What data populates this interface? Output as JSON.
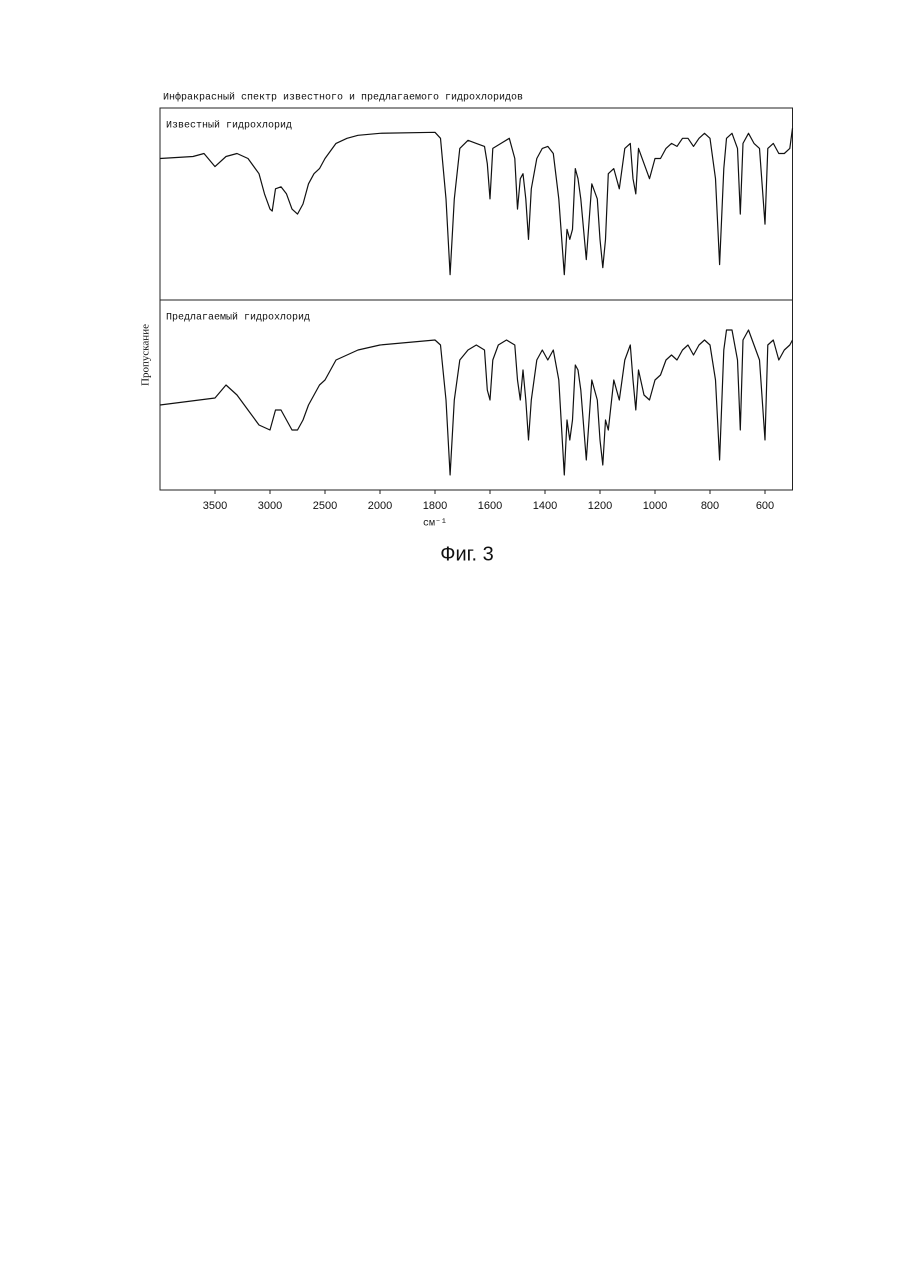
{
  "figure": {
    "title": "Инфракрасный спектр известного и предлагаемого гидрохлоридов",
    "ylabel": "Пропускание",
    "caption": "Фиг. 3"
  },
  "chart_data": [
    {
      "type": "line",
      "title": "Известный гидрохлорид",
      "color": "#111111",
      "ylim": [
        0,
        190
      ],
      "x": [
        4000,
        3700,
        3600,
        3500,
        3400,
        3300,
        3200,
        3100,
        3050,
        3000,
        2980,
        2950,
        2900,
        2850,
        2800,
        2750,
        2700,
        2650,
        2600,
        2550,
        2500,
        2400,
        2300,
        2200,
        2000,
        1800,
        1780,
        1760,
        1745,
        1730,
        1710,
        1680,
        1650,
        1620,
        1610,
        1600,
        1590,
        1560,
        1530,
        1510,
        1500,
        1490,
        1480,
        1470,
        1460,
        1450,
        1430,
        1410,
        1390,
        1370,
        1350,
        1330,
        1320,
        1310,
        1300,
        1290,
        1280,
        1270,
        1250,
        1230,
        1210,
        1200,
        1190,
        1180,
        1170,
        1150,
        1130,
        1110,
        1090,
        1080,
        1070,
        1060,
        1040,
        1020,
        1000,
        980,
        960,
        940,
        920,
        900,
        880,
        860,
        840,
        820,
        800,
        780,
        765,
        750,
        740,
        720,
        700,
        690,
        680,
        660,
        640,
        620,
        600,
        590,
        570,
        550,
        530,
        510,
        500
      ],
      "values": [
        140,
        142,
        145,
        132,
        142,
        145,
        140,
        125,
        105,
        90,
        88,
        110,
        112,
        105,
        90,
        85,
        95,
        115,
        125,
        130,
        140,
        155,
        160,
        163,
        165,
        166,
        160,
        100,
        25,
        100,
        150,
        158,
        155,
        152,
        135,
        100,
        150,
        155,
        160,
        140,
        90,
        120,
        125,
        100,
        60,
        110,
        140,
        150,
        152,
        145,
        100,
        25,
        70,
        60,
        70,
        130,
        120,
        100,
        40,
        115,
        100,
        60,
        32,
        60,
        125,
        130,
        110,
        150,
        155,
        120,
        105,
        150,
        135,
        120,
        140,
        140,
        150,
        155,
        152,
        160,
        160,
        152,
        160,
        165,
        160,
        120,
        35,
        130,
        160,
        165,
        150,
        85,
        155,
        165,
        155,
        150,
        75,
        150,
        155,
        145,
        145,
        150,
        170
      ]
    },
    {
      "type": "line",
      "title": "Предлагаемый гидрохлорид",
      "color": "#111111",
      "ylim": [
        0,
        190
      ],
      "xlabel": "см⁻¹",
      "xlim": [
        4000,
        500
      ],
      "xticks": [
        3500,
        3000,
        2500,
        2000,
        1800,
        1600,
        1400,
        1200,
        1000,
        800,
        600
      ],
      "x": [
        4000,
        3500,
        3400,
        3300,
        3200,
        3100,
        3000,
        2950,
        2900,
        2850,
        2800,
        2750,
        2700,
        2650,
        2600,
        2550,
        2500,
        2400,
        2200,
        2000,
        1800,
        1780,
        1760,
        1745,
        1730,
        1710,
        1680,
        1650,
        1620,
        1610,
        1600,
        1590,
        1570,
        1540,
        1510,
        1500,
        1490,
        1480,
        1470,
        1460,
        1450,
        1430,
        1410,
        1390,
        1370,
        1350,
        1330,
        1320,
        1310,
        1300,
        1290,
        1280,
        1270,
        1250,
        1230,
        1210,
        1200,
        1190,
        1180,
        1170,
        1150,
        1130,
        1110,
        1090,
        1080,
        1070,
        1060,
        1040,
        1020,
        1000,
        980,
        960,
        940,
        920,
        900,
        880,
        860,
        840,
        820,
        800,
        780,
        765,
        750,
        740,
        720,
        700,
        690,
        680,
        660,
        640,
        620,
        600,
        590,
        570,
        550,
        530,
        510,
        500
      ],
      "values": [
        85,
        92,
        105,
        95,
        80,
        65,
        60,
        80,
        80,
        70,
        60,
        60,
        70,
        85,
        95,
        105,
        110,
        130,
        140,
        145,
        150,
        145,
        90,
        15,
        90,
        130,
        140,
        145,
        140,
        100,
        90,
        130,
        145,
        150,
        145,
        110,
        90,
        120,
        90,
        50,
        90,
        130,
        140,
        130,
        140,
        110,
        15,
        70,
        50,
        70,
        125,
        120,
        100,
        30,
        110,
        90,
        50,
        25,
        70,
        60,
        110,
        90,
        130,
        145,
        110,
        80,
        120,
        95,
        90,
        110,
        115,
        130,
        135,
        130,
        140,
        145,
        135,
        145,
        150,
        145,
        110,
        30,
        140,
        160,
        160,
        130,
        60,
        150,
        160,
        145,
        130,
        50,
        145,
        150,
        130,
        140,
        145,
        150
      ]
    }
  ]
}
